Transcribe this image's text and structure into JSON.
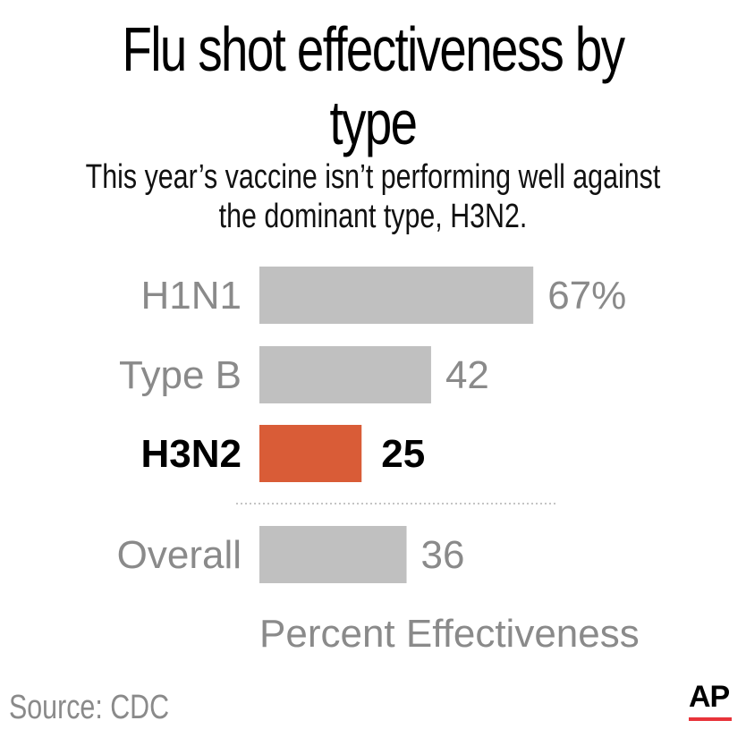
{
  "header": {
    "title": "Flu shot effectiveness by type",
    "subtitle": "This year’s vaccine isn’t performing well against the dominant type, H3N2."
  },
  "chart_data": {
    "type": "bar",
    "orientation": "horizontal",
    "categories": [
      "H1N1",
      "Type B",
      "H3N2",
      "Overall"
    ],
    "values": [
      67,
      42,
      25,
      36
    ],
    "value_labels": [
      "67%",
      "42",
      "25",
      "36"
    ],
    "highlight": "H3N2",
    "separator_before": "Overall",
    "xlabel": "Percent Effectiveness",
    "colors": {
      "bar": "#c0c0c0",
      "highlight": "#d95c37",
      "label": "#8a8a8a",
      "highlight_label": "#000000"
    }
  },
  "footer": {
    "source": "Source: CDC",
    "logo": "AP"
  }
}
